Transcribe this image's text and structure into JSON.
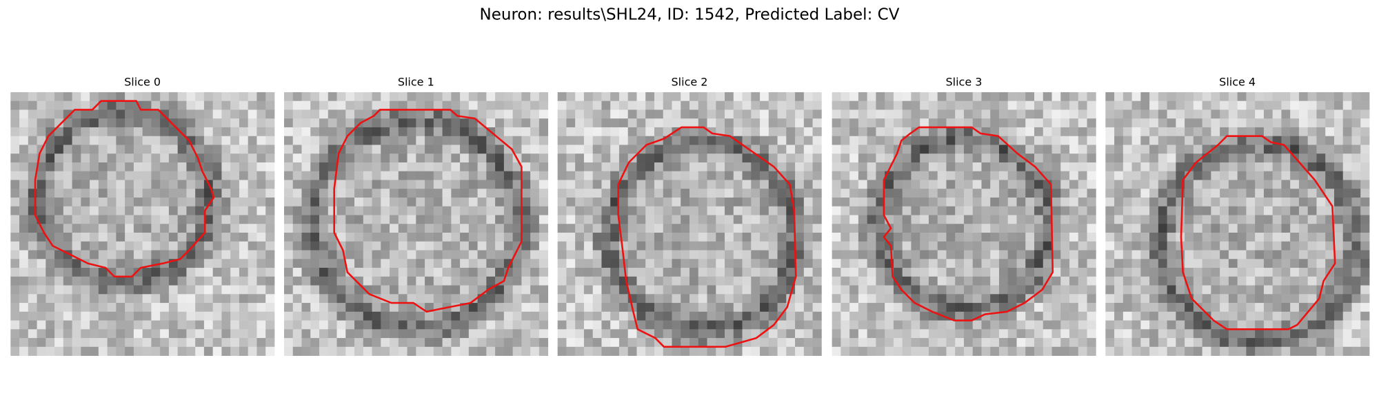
{
  "title": "Neuron: results\\SHL24, ID: 1542, Predicted Label: CV",
  "panels": [
    {
      "title": "Slice 0"
    },
    {
      "title": "Slice 1"
    },
    {
      "title": "Slice 2"
    },
    {
      "title": "Slice 3"
    },
    {
      "title": "Slice 4"
    }
  ]
}
